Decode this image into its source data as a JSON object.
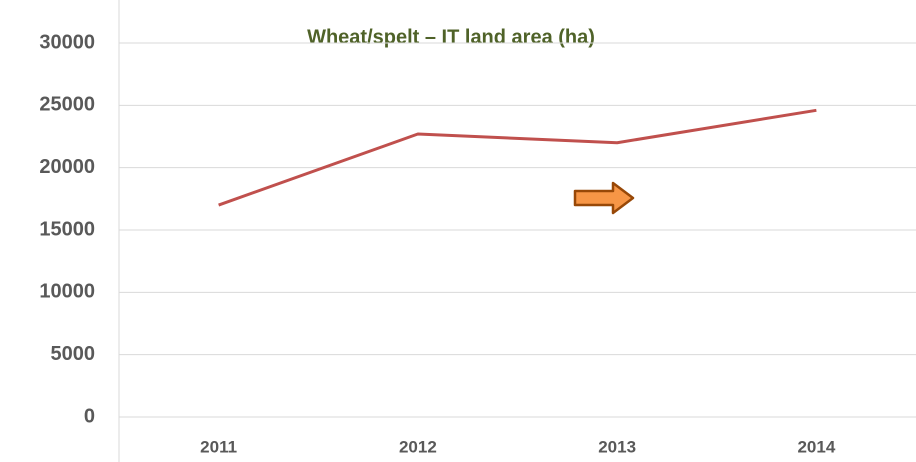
{
  "chart_data": {
    "type": "line",
    "title": "Wheat/spelt – IT  land area (ha)",
    "categories": [
      "2011",
      "2012",
      "2013",
      "2014"
    ],
    "series": [
      {
        "name": "Wheat/spelt",
        "color": "#c0504d",
        "values": [
          17000,
          22700,
          22000,
          24600
        ]
      }
    ],
    "ylim": [
      0,
      30000
    ],
    "yticks": [
      0,
      5000,
      10000,
      15000,
      20000,
      25000,
      30000
    ],
    "grid": true
  }
}
